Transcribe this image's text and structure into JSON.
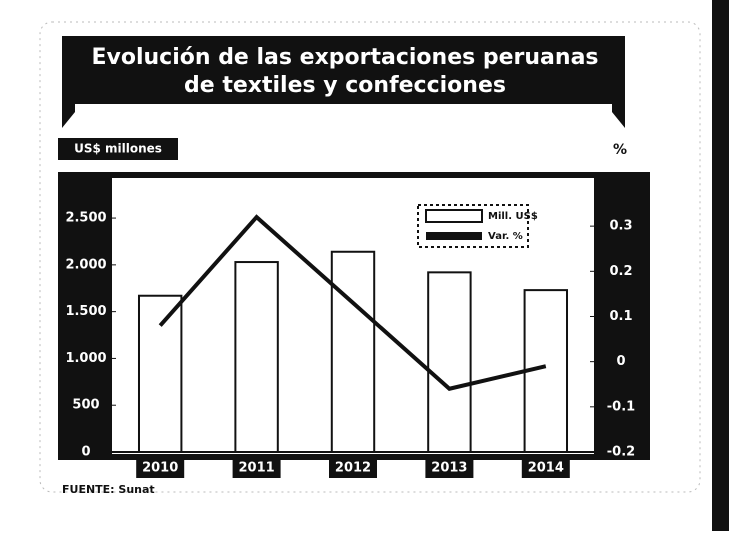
{
  "chart_data": {
    "type": "bar_line",
    "title": [
      "Evolución de las exportaciones peruanas",
      "de textiles y confecciones"
    ],
    "y_label": "US$ millones",
    "y2_label": "%",
    "source": "FUENTE: Sunat",
    "categories": [
      "2010",
      "2011",
      "2012",
      "2013",
      "2014"
    ],
    "series": [
      {
        "name": "Mill. US$",
        "type": "bar",
        "color": "#ffffff",
        "values": [
          1670,
          2030,
          2140,
          1920,
          1730
        ]
      },
      {
        "name": "Var. %",
        "type": "line",
        "axis": "y2",
        "color": "#111111",
        "values": [
          0.08,
          0.32,
          0.13,
          -0.06,
          -0.01
        ]
      }
    ],
    "ylim": [
      0,
      2800
    ],
    "yticks": [
      0,
      500,
      {
        "value": 1000,
        "label": "1.000"
      },
      {
        "value": 1500,
        "label": "1.500"
      },
      {
        "value": 2000,
        "label": "2.000"
      },
      {
        "value": 2500,
        "label": "2.500"
      }
    ],
    "y2lim": [
      -0.2,
      0.38
    ],
    "y2ticks": [
      -0.2,
      -0.1,
      0,
      0.1,
      0.2,
      0.3
    ],
    "legend": "upper right"
  }
}
